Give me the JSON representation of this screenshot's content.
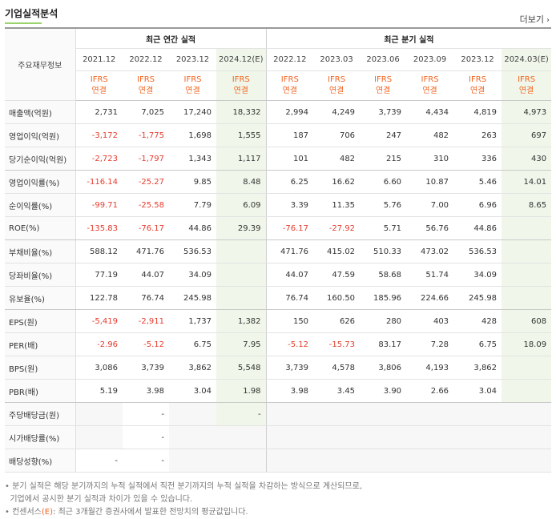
{
  "header": {
    "title": "기업실적분석",
    "more": "더보기"
  },
  "table": {
    "corner_label": "주요재무정보",
    "group_annual": "최근 연간 실적",
    "group_quarter": "최근 분기 실적",
    "annual_dates": [
      "2021.12",
      "2022.12",
      "2023.12",
      "2024.12(E)"
    ],
    "quarter_dates": [
      "2022.12",
      "2023.03",
      "2023.06",
      "2023.09",
      "2023.12",
      "2024.03(E)"
    ],
    "ifrs_line1": "IFRS",
    "ifrs_line2": "연결",
    "rows": [
      {
        "label": "매출액(억원)",
        "values": [
          "2,731",
          "7,025",
          "17,240",
          "18,332",
          "2,994",
          "4,249",
          "3,739",
          "4,434",
          "4,819",
          "4,973"
        ]
      },
      {
        "label": "영업이익(억원)",
        "values": [
          "-3,172",
          "-1,775",
          "1,698",
          "1,555",
          "187",
          "706",
          "247",
          "482",
          "263",
          "697"
        ]
      },
      {
        "label": "당기순이익(억원)",
        "values": [
          "-2,723",
          "-1,797",
          "1,343",
          "1,117",
          "101",
          "482",
          "215",
          "310",
          "336",
          "430"
        ]
      },
      {
        "label": "영업이익률(%)",
        "values": [
          "-116.14",
          "-25.27",
          "9.85",
          "8.48",
          "6.25",
          "16.62",
          "6.60",
          "10.87",
          "5.46",
          "14.01"
        ]
      },
      {
        "label": "순이익률(%)",
        "values": [
          "-99.71",
          "-25.58",
          "7.79",
          "6.09",
          "3.39",
          "11.35",
          "5.76",
          "7.00",
          "6.96",
          "8.65"
        ]
      },
      {
        "label": "ROE(%)",
        "values": [
          "-135.83",
          "-76.17",
          "44.86",
          "29.39",
          "-76.17",
          "-27.92",
          "5.71",
          "56.76",
          "44.86",
          ""
        ]
      },
      {
        "label": "부채비율(%)",
        "values": [
          "588.12",
          "471.76",
          "536.53",
          "",
          "471.76",
          "415.02",
          "510.33",
          "473.02",
          "536.53",
          ""
        ]
      },
      {
        "label": "당좌비율(%)",
        "values": [
          "77.19",
          "44.07",
          "34.09",
          "",
          "44.07",
          "47.59",
          "58.68",
          "51.74",
          "34.09",
          ""
        ]
      },
      {
        "label": "유보율(%)",
        "values": [
          "122.78",
          "76.74",
          "245.98",
          "",
          "76.74",
          "160.50",
          "185.96",
          "224.66",
          "245.98",
          ""
        ]
      },
      {
        "label": "EPS(원)",
        "values": [
          "-5,419",
          "-2,911",
          "1,737",
          "1,382",
          "150",
          "626",
          "280",
          "403",
          "428",
          "608"
        ]
      },
      {
        "label": "PER(배)",
        "values": [
          "-2.96",
          "-5.12",
          "6.75",
          "7.95",
          "-5.12",
          "-15.73",
          "83.17",
          "7.28",
          "6.75",
          "18.09"
        ]
      },
      {
        "label": "BPS(원)",
        "values": [
          "3,086",
          "3,739",
          "3,862",
          "5,548",
          "3,739",
          "4,578",
          "3,806",
          "4,193",
          "3,862",
          ""
        ]
      },
      {
        "label": "PBR(배)",
        "values": [
          "5.19",
          "3.98",
          "3.04",
          "1.98",
          "3.98",
          "3.45",
          "3.90",
          "2.66",
          "3.04",
          ""
        ]
      },
      {
        "label": "주당배당금(원)",
        "values": [
          "",
          "-",
          "",
          "-",
          "",
          "",
          "",
          "",
          "",
          ""
        ]
      },
      {
        "label": "시가배당률(%)",
        "values": [
          "",
          "-",
          "",
          "",
          "",
          "",
          "",
          "",
          "",
          ""
        ]
      },
      {
        "label": "배당성향(%)",
        "values": [
          "-",
          "-",
          "",
          "",
          "",
          "",
          "",
          "",
          "",
          ""
        ]
      }
    ]
  },
  "footnotes": {
    "line1": "분기 실적은 해당 분기까지의 누적 실적에서 직전 분기까지의 누적 실적을 차감하는 방식으로 계산되므로,",
    "line2": "기업에서 공시한 분기 실적과 차이가 있을 수 있습니다.",
    "line3_prefix": "컨센서스",
    "line3_em": "(E)",
    "line3_suffix": ": 최근 3개월간 증권사에서 발표한 전망치의 평균값입니다."
  },
  "colors": {
    "negative": "#e63b2e",
    "ifrs": "#f26522",
    "estimate_bg": "#f0f7ea",
    "accent": "#9ad36b"
  }
}
